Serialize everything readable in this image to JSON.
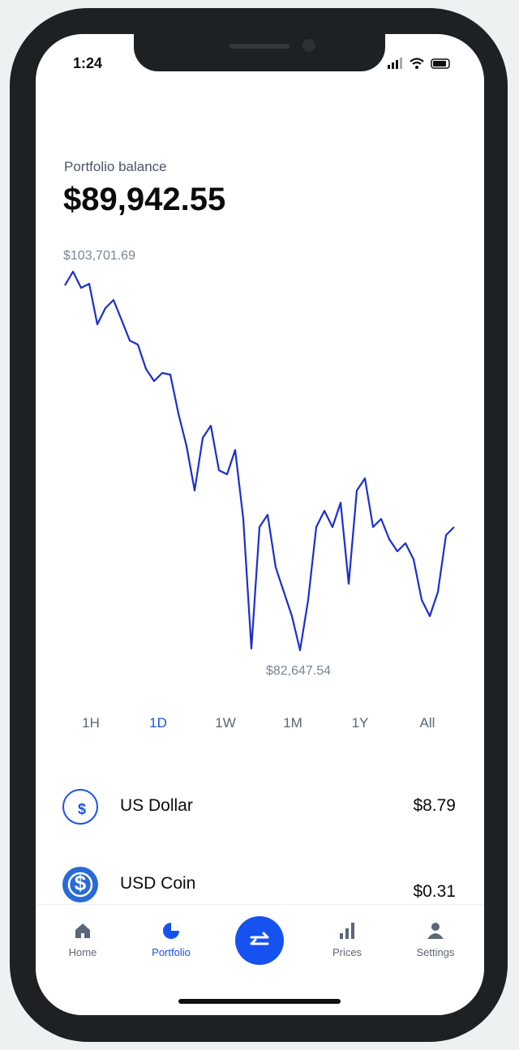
{
  "status": {
    "time": "1:24"
  },
  "header": {
    "label": "Portfolio balance",
    "balance": "$89,942.55"
  },
  "chart_data": {
    "type": "line",
    "color": "#1b2fd0",
    "high_label": "$103,701.69",
    "low_label": "$82,647.54",
    "ylim": [
      82647.54,
      103701.69
    ],
    "values": [
      102935,
      103701.69,
      102800,
      103025,
      100770,
      101675,
      102125,
      101000,
      99870,
      99645,
      98290,
      97615,
      98065,
      97975,
      95810,
      94010,
      91530,
      94460,
      95135,
      92655,
      92430,
      93785,
      89950,
      82740,
      89500,
      90180,
      87250,
      85895,
      84545,
      82647.54,
      85445,
      89500,
      90400,
      89500,
      90855,
      86345,
      91530,
      92205,
      89500,
      89950,
      88825,
      88150,
      88600,
      87700,
      85445,
      84545,
      85895,
      89050,
      89500
    ]
  },
  "ranges": {
    "items": [
      "1H",
      "1D",
      "1W",
      "1M",
      "1Y",
      "All"
    ],
    "active_index": 1
  },
  "assets": [
    {
      "name": "US Dollar",
      "value": "$8.79"
    },
    {
      "name": "USD Coin",
      "value": "$0.31"
    }
  ],
  "nav": {
    "items": [
      "Home",
      "Portfolio",
      "Prices",
      "Settings"
    ],
    "active_index": 1
  }
}
